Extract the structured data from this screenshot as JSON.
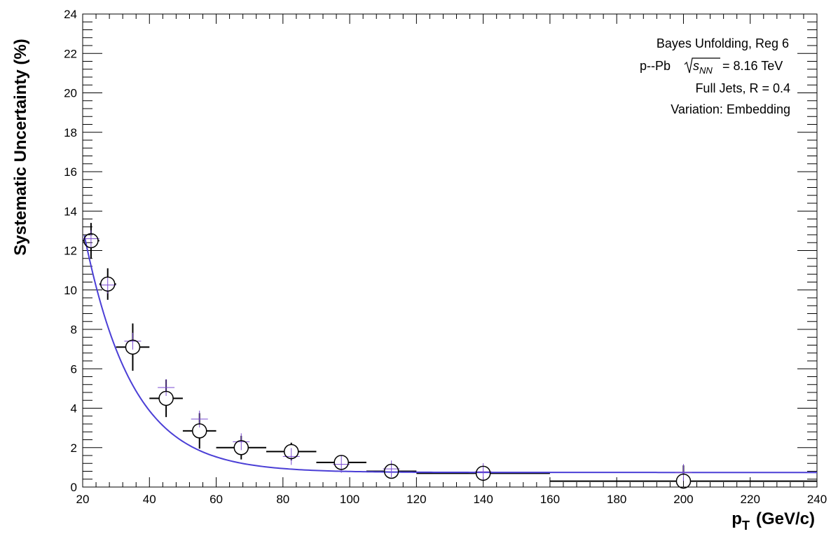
{
  "chart_data": {
    "type": "scatter",
    "title": "",
    "xlabel_main": "p",
    "xlabel_sub": "T",
    "xlabel_unit": "(GeV/c)",
    "ylabel": "Systematic Uncertainty (%)",
    "xlim": [
      20,
      240
    ],
    "ylim": [
      0,
      24
    ],
    "x_ticks": [
      20,
      40,
      60,
      80,
      100,
      120,
      140,
      160,
      180,
      200,
      220,
      240
    ],
    "y_ticks": [
      0,
      2,
      4,
      6,
      8,
      10,
      12,
      14,
      16,
      18,
      20,
      22,
      24
    ],
    "grid": false,
    "annotations": {
      "line1": "Bayes Unfolding, Reg 6",
      "line2_prefix": "p--Pb",
      "line2_sqrt_s": "s",
      "line2_sqrt_sub": "NN",
      "line2_value": "= 8.16 TeV",
      "line3": "Full Jets, R = 0.4",
      "line4": "Variation: Embedding"
    },
    "series": [
      {
        "marker": "open-circle",
        "color": "#000000",
        "points": [
          {
            "x": 22.5,
            "xlo": 20,
            "xhi": 25,
            "y": 12.5,
            "yerr": 0.9
          },
          {
            "x": 27.5,
            "xlo": 25,
            "xhi": 30,
            "y": 10.3,
            "yerr": 0.8
          },
          {
            "x": 35,
            "xlo": 30,
            "xhi": 40,
            "y": 7.1,
            "yerr": 1.2
          },
          {
            "x": 45,
            "xlo": 40,
            "xhi": 50,
            "y": 4.5,
            "yerr": 0.95
          },
          {
            "x": 55,
            "xlo": 50,
            "xhi": 60,
            "y": 2.85,
            "yerr": 0.9
          },
          {
            "x": 67.5,
            "xlo": 60,
            "xhi": 75,
            "y": 2.0,
            "yerr": 0.6
          },
          {
            "x": 82.5,
            "xlo": 75,
            "xhi": 90,
            "y": 1.8,
            "yerr": 0.45
          },
          {
            "x": 97.5,
            "xlo": 90,
            "xhi": 105,
            "y": 1.25,
            "yerr": 0.35
          },
          {
            "x": 112.5,
            "xlo": 105,
            "xhi": 120,
            "y": 0.8,
            "yerr": 0.35
          },
          {
            "x": 140,
            "xlo": 120,
            "xhi": 160,
            "y": 0.7,
            "yerr": 0.35
          },
          {
            "x": 200,
            "xlo": 160,
            "xhi": 240,
            "y": 0.3,
            "yerr": 0.8
          }
        ]
      },
      {
        "marker": "cross",
        "color": "#7a4bd1",
        "points": [
          {
            "x": 22.5,
            "y": 12.6
          },
          {
            "x": 27.5,
            "y": 10.25
          },
          {
            "x": 35,
            "y": 7.4
          },
          {
            "x": 45,
            "y": 5.05
          },
          {
            "x": 55,
            "y": 3.45
          },
          {
            "x": 67.5,
            "y": 2.3
          },
          {
            "x": 82.5,
            "y": 1.55
          },
          {
            "x": 97.5,
            "y": 1.15
          },
          {
            "x": 112.5,
            "y": 0.92
          },
          {
            "x": 140,
            "y": 0.78
          },
          {
            "x": 200,
            "y": 0.74
          }
        ]
      },
      {
        "type": "line",
        "color": "#4b3fd6",
        "function": {
          "form": "a*exp(-(x-x0)/tau)+c",
          "a": 12.45,
          "x0": 20,
          "tau": 14.5,
          "c": 0.74
        },
        "x_range": [
          20.5,
          240
        ]
      }
    ]
  }
}
